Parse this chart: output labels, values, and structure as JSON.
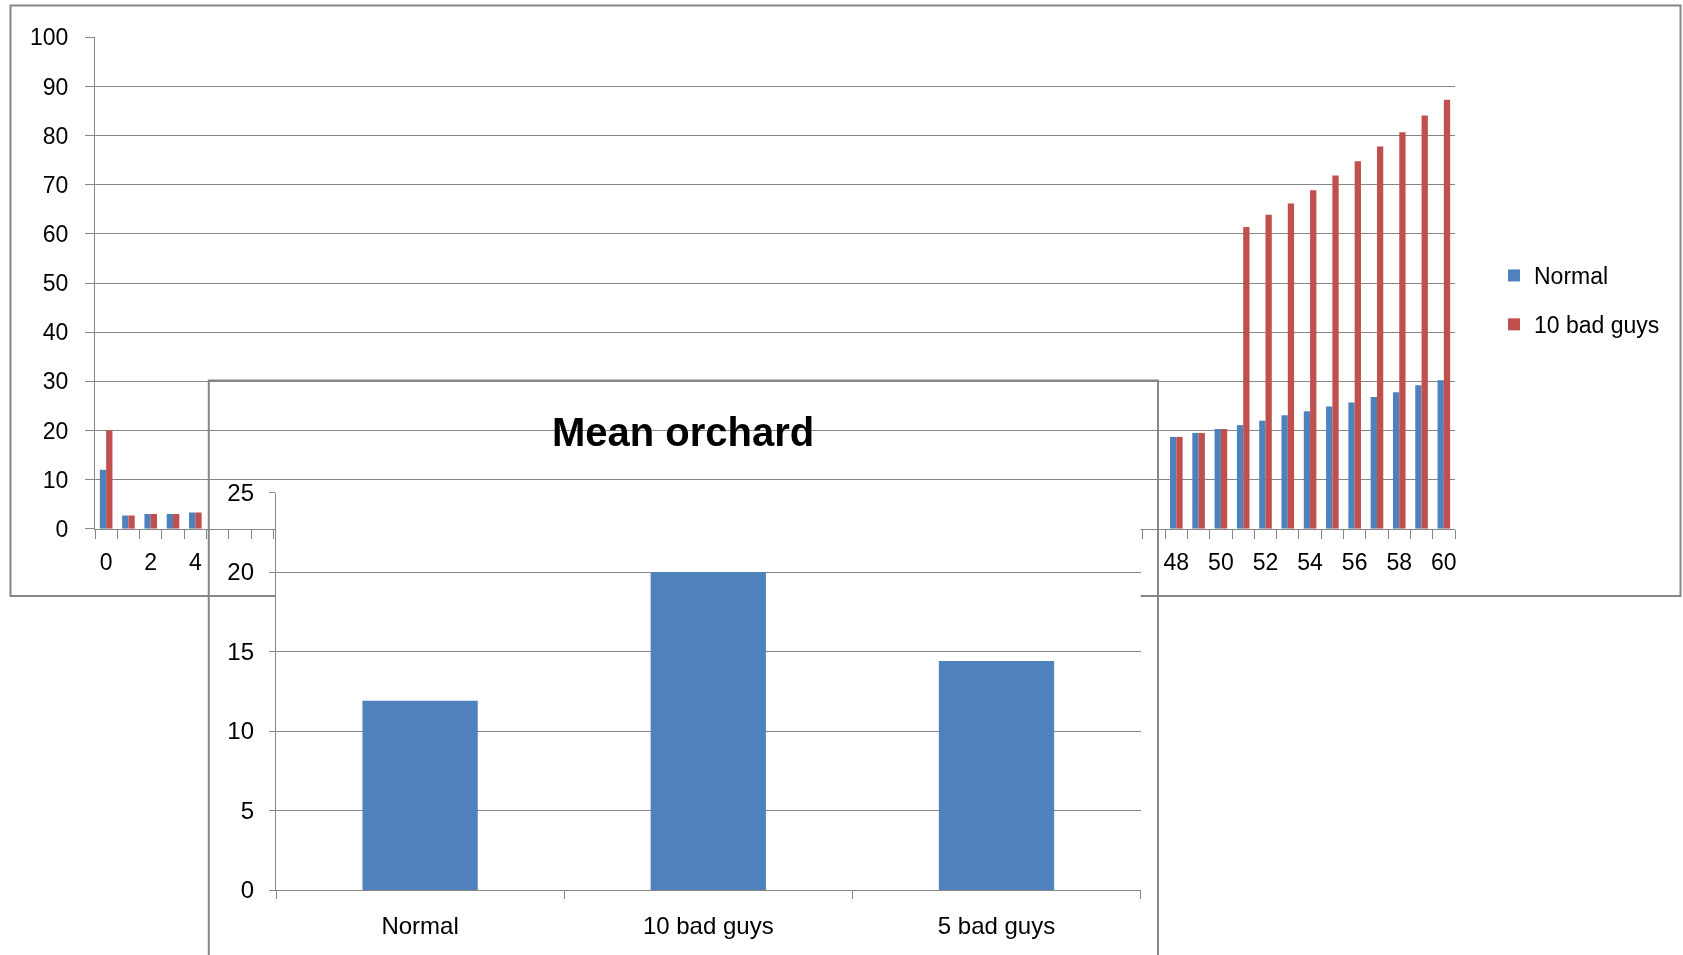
{
  "chart_data": [
    {
      "type": "bar",
      "categories": [
        "0",
        null,
        "2",
        null,
        "4",
        null,
        null,
        null,
        null,
        null,
        null,
        null,
        null,
        null,
        null,
        null,
        null,
        null,
        null,
        null,
        null,
        null,
        null,
        null,
        null,
        null,
        null,
        null,
        null,
        null,
        null,
        null,
        null,
        null,
        null,
        null,
        null,
        null,
        null,
        null,
        null,
        null,
        null,
        null,
        null,
        null,
        null,
        null,
        "48",
        null,
        "50",
        null,
        "52",
        null,
        "54",
        null,
        "56",
        null,
        "58",
        null,
        "60"
      ],
      "series": [
        {
          "name": "Normal",
          "color": "#4f81bd",
          "values": [
            12,
            2.7,
            3,
            3,
            3.3,
            null,
            null,
            null,
            null,
            null,
            null,
            null,
            null,
            null,
            null,
            null,
            null,
            null,
            null,
            null,
            null,
            null,
            null,
            null,
            null,
            null,
            null,
            null,
            null,
            null,
            null,
            null,
            null,
            null,
            null,
            null,
            null,
            null,
            null,
            null,
            null,
            null,
            null,
            null,
            null,
            null,
            null,
            null,
            18.7,
            19.5,
            20.3,
            21.1,
            22,
            23.1,
            23.9,
            24.9,
            25.7,
            26.8,
            27.8,
            29.2,
            30.2
          ]
        },
        {
          "name": "10 bad guys",
          "color": "#c0504d",
          "values": [
            20,
            2.7,
            3,
            3,
            3.3,
            null,
            null,
            null,
            null,
            null,
            null,
            null,
            null,
            null,
            null,
            null,
            null,
            null,
            null,
            null,
            null,
            null,
            null,
            null,
            null,
            null,
            null,
            null,
            null,
            null,
            null,
            null,
            null,
            null,
            null,
            null,
            null,
            null,
            null,
            null,
            null,
            null,
            null,
            null,
            null,
            null,
            null,
            null,
            18.7,
            19.5,
            20.3,
            61.4,
            63.9,
            66.2,
            68.9,
            71.9,
            74.8,
            77.8,
            80.7,
            84.1,
            87.3
          ]
        }
      ],
      "ylim": [
        0,
        100
      ],
      "yticks": [
        0,
        10,
        20,
        30,
        40,
        50,
        60,
        70,
        80,
        90,
        100
      ],
      "grid": "y",
      "legend": "right"
    },
    {
      "type": "bar",
      "title": "Mean orchard",
      "categories": [
        "Normal",
        "10 bad guys",
        "5 bad guys"
      ],
      "values": [
        11.9,
        20,
        14.4
      ],
      "color": "#4f81bd",
      "ylim": [
        0,
        25
      ],
      "yticks": [
        0,
        5,
        10,
        15,
        20,
        25
      ],
      "grid": "y"
    }
  ]
}
